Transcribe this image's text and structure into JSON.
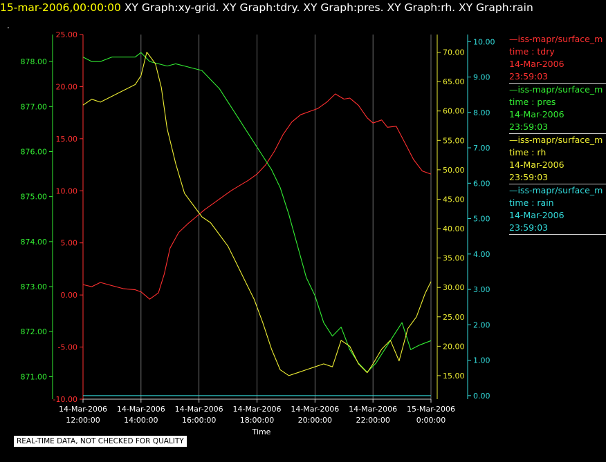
{
  "header": {
    "timestamp": "15-mar-2006,00:00:00",
    "graphs": "XY Graph:xy-grid.  XY Graph:tdry.  XY Graph:pres.  XY Graph:rh.  XY Graph:rain"
  },
  "dot": ".",
  "legend": [
    {
      "source": "—iss-mapr/surface_m",
      "field": "time : tdry",
      "date": "14-Mar-2006",
      "time": "23:59:03",
      "color": "#ff3030"
    },
    {
      "source": "—iss-mapr/surface_m",
      "field": "time : pres",
      "date": "14-Mar-2006",
      "time": "23:59:03",
      "color": "#33ee33"
    },
    {
      "source": "—iss-mapr/surface_m",
      "field": "time : rh",
      "date": "14-Mar-2006",
      "time": "23:59:03",
      "color": "#eeee33"
    },
    {
      "source": "—iss-mapr/surface_m",
      "field": "time : rain",
      "date": "14-Mar-2006",
      "time": "23:59:03",
      "color": "#33dddd"
    }
  ],
  "disclaimer": "REAL-TIME DATA, NOT CHECKED FOR QUALITY",
  "chart_data": {
    "type": "line",
    "xlabel": "Time",
    "x_range": [
      12,
      24
    ],
    "x_ticks": [
      {
        "x": 12,
        "date": "14-Mar-2006",
        "time": "12:00:00"
      },
      {
        "x": 14,
        "date": "14-Mar-2006",
        "time": "14:00:00"
      },
      {
        "x": 16,
        "date": "14-Mar-2006",
        "time": "16:00:00"
      },
      {
        "x": 18,
        "date": "14-Mar-2006",
        "time": "18:00:00"
      },
      {
        "x": 20,
        "date": "14-Mar-2006",
        "time": "20:00:00"
      },
      {
        "x": 22,
        "date": "14-Mar-2006",
        "time": "22:00:00"
      },
      {
        "x": 24,
        "date": "15-Mar-2006",
        "time": "0:00:00"
      }
    ],
    "grid": true,
    "axes": [
      {
        "id": "pres",
        "side": "left",
        "color": "#33ee33",
        "range": [
          870.5,
          878.6
        ],
        "ticks": [
          "871.00",
          "872.00",
          "873.00",
          "874.00",
          "875.00",
          "876.00",
          "877.00",
          "878.00"
        ]
      },
      {
        "id": "tdry",
        "side": "left",
        "color": "#ff3030",
        "range": [
          -10,
          25
        ],
        "ticks": [
          "-10.00",
          "-5.00",
          "0.00",
          "5.00",
          "10.00",
          "15.00",
          "20.00",
          "25.00"
        ]
      },
      {
        "id": "rh",
        "side": "right",
        "color": "#eeee33",
        "range": [
          11,
          73
        ],
        "ticks": [
          "15.00",
          "20.00",
          "25.00",
          "30.00",
          "35.00",
          "40.00",
          "45.00",
          "50.00",
          "55.00",
          "60.00",
          "65.00",
          "70.00"
        ]
      },
      {
        "id": "rain",
        "side": "right",
        "color": "#33dddd",
        "range": [
          -0.1,
          10.2
        ],
        "ticks": [
          "0.00",
          "1.00",
          "2.00",
          "3.00",
          "4.00",
          "5.00",
          "6.00",
          "7.00",
          "8.00",
          "9.00",
          "10.00"
        ]
      }
    ],
    "series": [
      {
        "axis": "tdry",
        "color": "#ff3030",
        "x": [
          12,
          12.3,
          12.6,
          13,
          13.4,
          13.8,
          14,
          14.3,
          14.6,
          14.8,
          15,
          15.3,
          15.6,
          15.9,
          16.2,
          16.5,
          16.8,
          17.1,
          17.4,
          17.7,
          18,
          18.3,
          18.6,
          18.9,
          19.2,
          19.5,
          19.8,
          20.1,
          20.4,
          20.7,
          21,
          21.2,
          21.5,
          21.8,
          22,
          22.3,
          22.5,
          22.8,
          23.1,
          23.4,
          23.7,
          24
        ],
        "values": [
          1,
          0.8,
          1.2,
          0.9,
          0.6,
          0.5,
          0.3,
          -0.4,
          0.2,
          2,
          4.5,
          6,
          6.8,
          7.5,
          8.2,
          8.8,
          9.4,
          10,
          10.5,
          11,
          11.6,
          12.5,
          13.8,
          15.4,
          16.6,
          17.3,
          17.6,
          17.9,
          18.5,
          19.3,
          18.8,
          18.9,
          18.2,
          17,
          16.5,
          16.8,
          16.1,
          16.2,
          14.6,
          13,
          11.9,
          11.6
        ]
      },
      {
        "axis": "pres",
        "color": "#33ee33",
        "x": [
          12,
          12.3,
          12.6,
          13,
          13.4,
          13.8,
          14,
          14.3,
          14.6,
          14.9,
          15.2,
          15.5,
          15.8,
          16.1,
          16.4,
          16.7,
          17,
          17.3,
          17.6,
          17.9,
          18.2,
          18.5,
          18.8,
          19.1,
          19.4,
          19.7,
          20,
          20.3,
          20.6,
          20.9,
          21.2,
          21.5,
          21.8,
          22.1,
          22.4,
          22.7,
          23,
          23.3,
          23.6,
          24
        ],
        "values": [
          878.1,
          878.0,
          878.0,
          878.1,
          878.1,
          878.1,
          878.2,
          878.0,
          877.95,
          877.9,
          877.95,
          877.9,
          877.85,
          877.8,
          877.6,
          877.4,
          877.1,
          876.8,
          876.5,
          876.2,
          875.9,
          875.6,
          875.2,
          874.6,
          873.9,
          873.2,
          872.8,
          872.2,
          871.9,
          872.1,
          871.6,
          871.3,
          871.1,
          871.3,
          871.6,
          871.9,
          872.2,
          871.6,
          871.7,
          871.8
        ]
      },
      {
        "axis": "rh",
        "color": "#eeee33",
        "x": [
          12,
          12.3,
          12.6,
          13,
          13.4,
          13.8,
          14,
          14.2,
          14.5,
          14.7,
          14.9,
          15.2,
          15.5,
          15.8,
          16.1,
          16.4,
          16.7,
          17,
          17.3,
          17.6,
          17.9,
          18.2,
          18.5,
          18.8,
          19.1,
          19.4,
          19.7,
          20,
          20.3,
          20.6,
          20.9,
          21.2,
          21.5,
          21.8,
          22,
          22.3,
          22.6,
          22.9,
          23.2,
          23.5,
          23.8,
          24
        ],
        "values": [
          61,
          62,
          61.5,
          62.5,
          63.5,
          64.5,
          66,
          70,
          68,
          64,
          57,
          51,
          46,
          44,
          42,
          41,
          39,
          37,
          34,
          31,
          28,
          24,
          19.5,
          16,
          15,
          15.5,
          16,
          16.5,
          17,
          16.5,
          21,
          20,
          17,
          15.5,
          17,
          19.5,
          21,
          17.5,
          23,
          25,
          29,
          31
        ]
      },
      {
        "axis": "rain",
        "color": "#33dddd",
        "x": [
          12,
          24
        ],
        "values": [
          0,
          0
        ]
      }
    ]
  }
}
